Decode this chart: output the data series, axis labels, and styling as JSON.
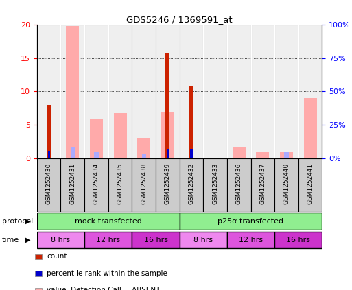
{
  "title": "GDS5246 / 1369591_at",
  "samples": [
    "GSM1252430",
    "GSM1252431",
    "GSM1252434",
    "GSM1252435",
    "GSM1252438",
    "GSM1252439",
    "GSM1252432",
    "GSM1252433",
    "GSM1252436",
    "GSM1252437",
    "GSM1252440",
    "GSM1252441"
  ],
  "count_values": [
    8.0,
    0,
    0,
    0,
    0,
    15.8,
    10.8,
    0,
    0,
    0,
    0,
    0
  ],
  "rank_values": [
    5.2,
    0,
    0,
    0,
    0,
    6.5,
    6.3,
    0,
    0,
    0,
    0,
    0
  ],
  "absent_value_values": [
    0,
    19.8,
    5.8,
    6.7,
    3.0,
    6.8,
    0,
    0,
    1.65,
    0.95,
    0.9,
    9.0
  ],
  "absent_rank_values": [
    0,
    8.5,
    4.8,
    0,
    3.1,
    0,
    0,
    0,
    0,
    0,
    4.5,
    0
  ],
  "ylim_left": [
    0,
    20
  ],
  "ylim_right": [
    0,
    100
  ],
  "yticks_left": [
    0,
    5,
    10,
    15,
    20
  ],
  "yticks_right": [
    0,
    25,
    50,
    75,
    100
  ],
  "yticklabels_left": [
    "0",
    "5",
    "10",
    "15",
    "20"
  ],
  "yticklabels_right": [
    "0%",
    "25%",
    "50%",
    "75%",
    "100%"
  ],
  "color_count": "#cc2200",
  "color_rank": "#0000cc",
  "color_absent_value": "#ffaaaa",
  "color_absent_rank": "#aaaaff",
  "color_protocol": "#90ee90",
  "color_time_8": "#ee88ee",
  "color_time_12": "#dd55dd",
  "color_time_16": "#cc33cc",
  "color_sample_bg": "#cccccc",
  "time_groups": [
    {
      "label": "8 hrs",
      "start": 0,
      "end": 2,
      "color": "#ee88ee"
    },
    {
      "label": "12 hrs",
      "start": 2,
      "end": 4,
      "color": "#dd55dd"
    },
    {
      "label": "16 hrs",
      "start": 4,
      "end": 6,
      "color": "#cc33cc"
    },
    {
      "label": "8 hrs",
      "start": 6,
      "end": 8,
      "color": "#ee88ee"
    },
    {
      "label": "12 hrs",
      "start": 8,
      "end": 10,
      "color": "#dd55dd"
    },
    {
      "label": "16 hrs",
      "start": 10,
      "end": 12,
      "color": "#cc33cc"
    }
  ]
}
